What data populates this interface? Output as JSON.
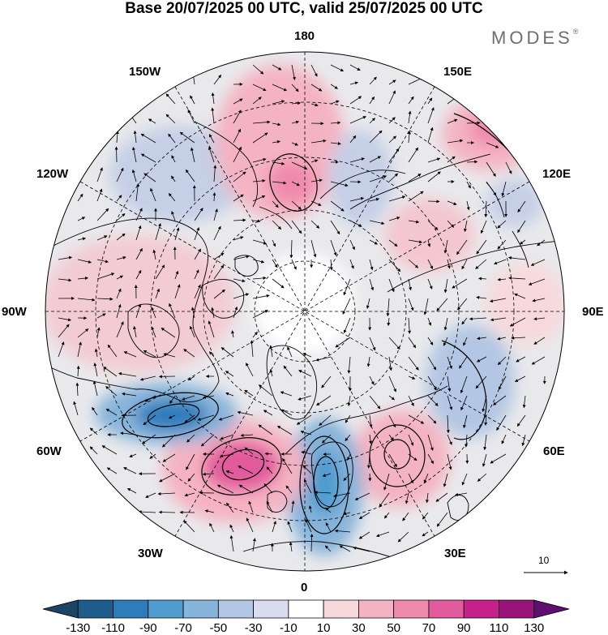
{
  "title": "Base 20/07/2025 00 UTC, valid 25/07/2025 00 UTC",
  "logo": {
    "text": "MODES",
    "mark": "®"
  },
  "longitude_labels": {
    "top": "180",
    "bottom": "0",
    "left": "90W",
    "right": "90E",
    "upper_left_150": "150W",
    "upper_left_120": "120W",
    "upper_right_150": "150E",
    "upper_right_120": "120E",
    "lower_left_60": "60W",
    "lower_left_30": "30W",
    "lower_right_60": "60E",
    "lower_right_30": "30E"
  },
  "vector_scale": {
    "label": "10"
  },
  "colorbar": {
    "labels": [
      "-130",
      "-110",
      "-90",
      "-70",
      "-50",
      "-30",
      "-10",
      "10",
      "30",
      "50",
      "70",
      "90",
      "110",
      "130"
    ],
    "colors": [
      "#1d4464",
      "#1e5c8c",
      "#2e7dbb",
      "#4f9ccf",
      "#86b4da",
      "#b3c6e3",
      "#d9dcee",
      "#ffffff",
      "#f7d9db",
      "#f4b3c2",
      "#f08aad",
      "#e25b9d",
      "#c6218b",
      "#98137a",
      "#5e0f6f"
    ]
  },
  "anomaly_centers": [
    {
      "name": "north-atlantic-negative",
      "value": -95,
      "color": "#2e7dbb"
    },
    {
      "name": "north-atlantic-positive",
      "value": 75,
      "color": "#e25b9d"
    },
    {
      "name": "labrador-negative",
      "value": -85,
      "color": "#4f9ccf"
    },
    {
      "name": "bering-positive",
      "value": 65,
      "color": "#f08aad"
    },
    {
      "name": "far-east-positive",
      "value": 55,
      "color": "#f08aad"
    },
    {
      "name": "west-russia-positive",
      "value": 45,
      "color": "#f4b3c2"
    },
    {
      "name": "siberia-negative",
      "value": -45,
      "color": "#b3c6e3"
    }
  ]
}
